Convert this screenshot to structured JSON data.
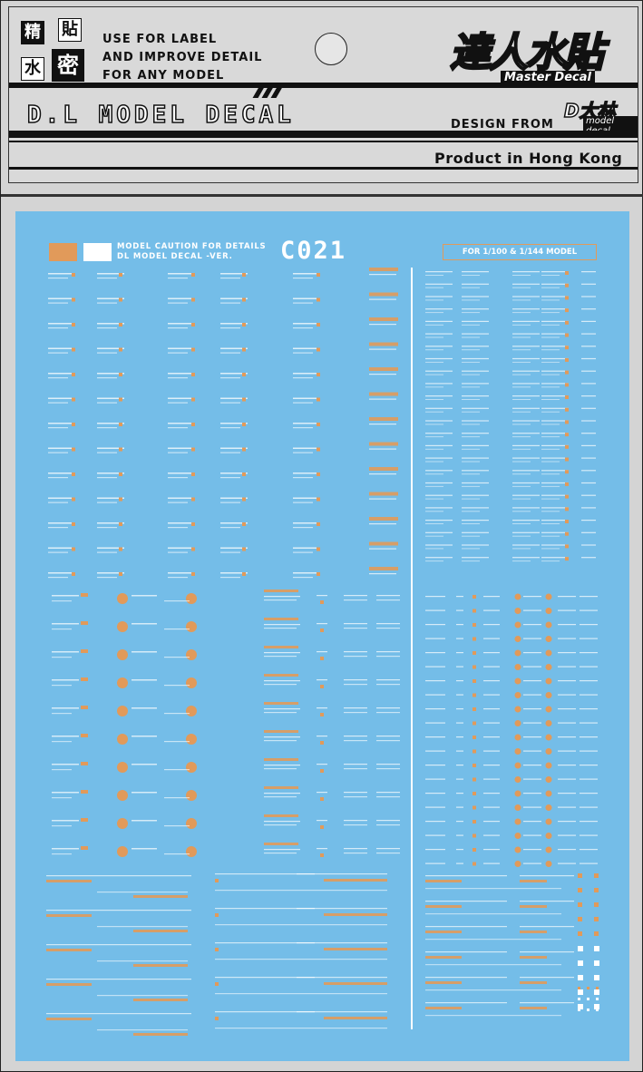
{
  "header": {
    "cjk_chars": [
      "精",
      "貼",
      "水",
      "密"
    ],
    "tagline": [
      "USE FOR LABEL",
      "AND IMPROVE DETAIL",
      "FOR ANY MODEL"
    ],
    "brand_title": "D.L MODEL DECAL",
    "logo_cjk": "達人水貼",
    "logo_sub": "Master Decal",
    "design_from": "DESIGN FROM",
    "design_logo": "D大林",
    "design_logo_sub": "model decal",
    "product": "Product in Hong Kong"
  },
  "sheet": {
    "title_line1": "MODEL CAUTION FOR DETAILS",
    "title_line2": "DL MODEL DECAL -VER.",
    "code": "C021",
    "scale_label": "FOR 1/100 & 1/144 MODEL",
    "colors": {
      "background": "#74bde8",
      "orange": "#e19a5a",
      "white": "#ffffff"
    }
  }
}
